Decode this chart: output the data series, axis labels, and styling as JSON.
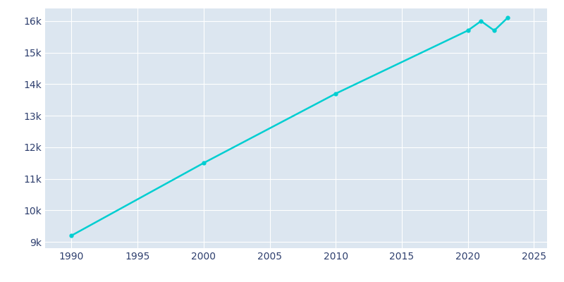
{
  "years": [
    1990,
    2000,
    2010,
    2020,
    2021,
    2022,
    2023
  ],
  "population": [
    9200,
    11500,
    13700,
    15700,
    16000,
    15700,
    16100
  ],
  "line_color": "#00CED1",
  "background_color": "#dce6f0",
  "fig_background": "#ffffff",
  "grid_color": "#ffffff",
  "text_color": "#2e3f6e",
  "xlim": [
    1988,
    2026
  ],
  "ylim": [
    8800,
    16400
  ],
  "xticks": [
    1990,
    1995,
    2000,
    2005,
    2010,
    2015,
    2020,
    2025
  ],
  "ytick_values": [
    9000,
    10000,
    11000,
    12000,
    13000,
    14000,
    15000,
    16000
  ],
  "ytick_labels": [
    "9k",
    "10k",
    "11k",
    "12k",
    "13k",
    "14k",
    "15k",
    "16k"
  ],
  "line_width": 1.8,
  "marker": "o",
  "marker_size": 3.5
}
